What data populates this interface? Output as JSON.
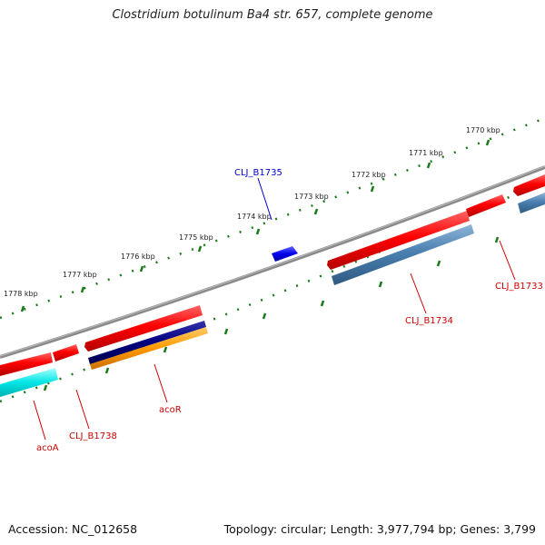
{
  "title": "Clostridium botulinum Ba4 str. 657, complete genome",
  "footer": {
    "accession": "Accession: NC_012658",
    "stats": "Topology: circular; Length: 3,977,794 bp; Genes: 3,799"
  },
  "colors": {
    "backbone": "#8a8a8a",
    "tick": "#1a7a1a",
    "gene_red": "#ff0000",
    "gene_steelblue": "#4a7fb0",
    "gene_cyan": "#00e5e5",
    "gene_navy": "#000080",
    "gene_orange": "#ff9900",
    "gene_blue": "#0000ee",
    "label_red": "#cc0000",
    "label_blue": "#0000cc"
  },
  "scale_labels": [
    "1770 kbp",
    "1771 kbp",
    "1772 kbp",
    "1773 kbp",
    "1774 kbp",
    "1775 kbp",
    "1776 kbp",
    "1777 kbp",
    "1778 kbp"
  ],
  "gene_labels": {
    "clj_b1735": "CLJ_B1735",
    "clj_b1733": "CLJ_B1733",
    "clj_b1734": "CLJ_B1734",
    "acor": "acoR",
    "clj_b1738": "CLJ_B1738",
    "acoa": "acoA"
  }
}
